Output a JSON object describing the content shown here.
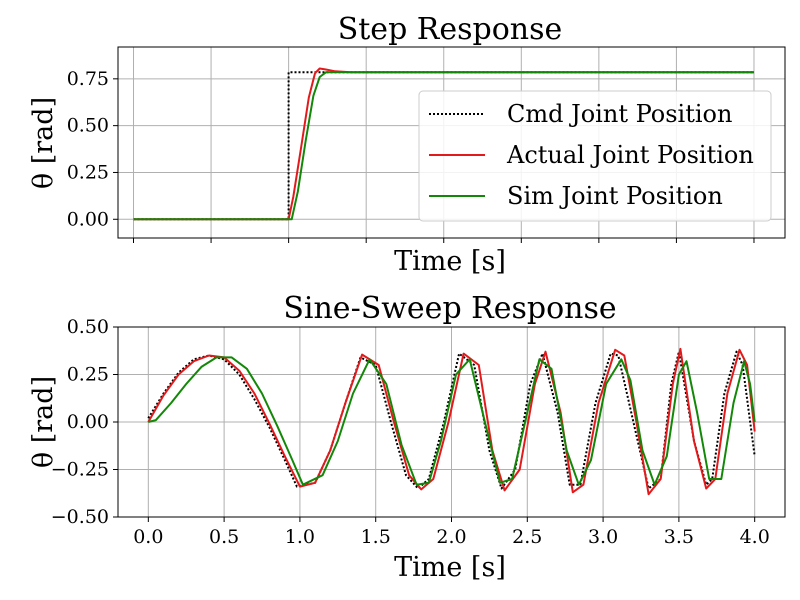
{
  "chart_data": [
    {
      "type": "line",
      "title": "Step Response",
      "xlabel": "Time [s]",
      "ylabel": "θ [rad]",
      "xlim": [
        -0.1,
        4.2
      ],
      "ylim": [
        -0.1,
        0.92
      ],
      "xticks": [
        0.0,
        0.5,
        1.0,
        1.5,
        2.0,
        2.5,
        3.0,
        3.5,
        4.0
      ],
      "show_xtick_labels": false,
      "yticks": [
        0.0,
        0.25,
        0.5,
        0.75
      ],
      "ytick_labels": [
        "0.00",
        "0.25",
        "0.50",
        "0.75"
      ],
      "grid": true,
      "legend": "right",
      "series": [
        {
          "name": "Cmd Joint Position",
          "color": "#000000",
          "style": "dotted",
          "x": [
            0.0,
            1.0,
            1.0,
            1.15,
            4.0
          ],
          "y": [
            0.0,
            0.0,
            0.785,
            0.785,
            0.785
          ]
        },
        {
          "name": "Actual Joint Position",
          "color": "#e31a1c",
          "style": "solid",
          "x": [
            0.0,
            1.0,
            1.03,
            1.08,
            1.13,
            1.17,
            1.2,
            1.24,
            1.3,
            1.4,
            4.0
          ],
          "y": [
            0.0,
            0.0,
            0.12,
            0.38,
            0.65,
            0.78,
            0.805,
            0.8,
            0.79,
            0.785,
            0.785
          ]
        },
        {
          "name": "Sim Joint Position",
          "color": "#138808",
          "style": "solid",
          "x": [
            0.0,
            1.02,
            1.06,
            1.11,
            1.16,
            1.2,
            1.24,
            1.3,
            4.0
          ],
          "y": [
            0.0,
            0.0,
            0.15,
            0.42,
            0.66,
            0.76,
            0.785,
            0.785,
            0.785
          ]
        }
      ]
    },
    {
      "type": "line",
      "title": "Sine-Sweep Response",
      "xlabel": "Time [s]",
      "ylabel": "θ [rad]",
      "xlim": [
        -0.2,
        4.2
      ],
      "ylim": [
        -0.5,
        0.5
      ],
      "xticks": [
        0.0,
        0.5,
        1.0,
        1.5,
        2.0,
        2.5,
        3.0,
        3.5,
        4.0
      ],
      "xtick_labels": [
        "0.0",
        "0.5",
        "1.0",
        "1.5",
        "2.0",
        "2.5",
        "3.0",
        "3.5",
        "4.0"
      ],
      "yticks": [
        -0.5,
        -0.25,
        0.0,
        0.25,
        0.5
      ],
      "ytick_labels": [
        "−0.50",
        "−0.25",
        "0.00",
        "0.25",
        "0.50"
      ],
      "grid": true,
      "series": [
        {
          "name": "Cmd Joint Position",
          "color": "#000000",
          "style": "dotted",
          "x": [
            0.0,
            0.1,
            0.2,
            0.3,
            0.4,
            0.5,
            0.6,
            0.7,
            0.8,
            0.9,
            0.98,
            1.1,
            1.2,
            1.3,
            1.4,
            1.5,
            1.6,
            1.7,
            1.78,
            1.85,
            1.95,
            2.05,
            2.15,
            2.25,
            2.33,
            2.42,
            2.52,
            2.6,
            2.7,
            2.78,
            2.85,
            2.95,
            3.05,
            3.1,
            3.2,
            3.3,
            3.38,
            3.45,
            3.5,
            3.6,
            3.68,
            3.72,
            3.8,
            3.88,
            3.92,
            4.0
          ],
          "y": [
            0.02,
            0.15,
            0.26,
            0.33,
            0.35,
            0.33,
            0.25,
            0.12,
            -0.03,
            -0.2,
            -0.34,
            -0.32,
            -0.15,
            0.1,
            0.34,
            0.3,
            0.0,
            -0.28,
            -0.35,
            -0.3,
            0.0,
            0.36,
            0.3,
            -0.15,
            -0.35,
            -0.25,
            0.2,
            0.36,
            0.05,
            -0.33,
            -0.33,
            0.1,
            0.36,
            0.35,
            0.0,
            -0.35,
            -0.3,
            0.2,
            0.37,
            -0.1,
            -0.33,
            -0.3,
            0.15,
            0.37,
            0.3,
            -0.18
          ]
        },
        {
          "name": "Actual Joint Position",
          "color": "#e31a1c",
          "style": "solid",
          "x": [
            0.0,
            0.1,
            0.2,
            0.3,
            0.4,
            0.5,
            0.6,
            0.7,
            0.8,
            0.9,
            1.0,
            1.1,
            1.2,
            1.3,
            1.41,
            1.52,
            1.62,
            1.72,
            1.8,
            1.88,
            1.98,
            2.08,
            2.18,
            2.27,
            2.35,
            2.45,
            2.55,
            2.62,
            2.72,
            2.8,
            2.87,
            2.97,
            3.08,
            3.14,
            3.22,
            3.3,
            3.38,
            3.46,
            3.51,
            3.6,
            3.68,
            3.74,
            3.82,
            3.9,
            3.95,
            4.0
          ],
          "y": [
            0.0,
            0.14,
            0.25,
            0.32,
            0.35,
            0.34,
            0.27,
            0.15,
            -0.01,
            -0.18,
            -0.34,
            -0.32,
            -0.15,
            0.1,
            0.355,
            0.3,
            0.0,
            -0.28,
            -0.355,
            -0.3,
            0.0,
            0.36,
            0.3,
            -0.15,
            -0.36,
            -0.25,
            0.2,
            0.37,
            0.05,
            -0.37,
            -0.33,
            0.1,
            0.38,
            0.35,
            0.0,
            -0.38,
            -0.3,
            0.2,
            0.385,
            -0.1,
            -0.35,
            -0.3,
            0.15,
            0.38,
            0.3,
            -0.05
          ]
        },
        {
          "name": "Sim Joint Position",
          "color": "#138808",
          "style": "solid",
          "x": [
            0.0,
            0.05,
            0.15,
            0.25,
            0.35,
            0.45,
            0.55,
            0.65,
            0.75,
            0.85,
            0.95,
            1.02,
            1.15,
            1.25,
            1.35,
            1.46,
            1.57,
            1.67,
            1.77,
            1.85,
            1.93,
            2.03,
            2.12,
            2.22,
            2.32,
            2.4,
            2.5,
            2.58,
            2.66,
            2.76,
            2.84,
            2.92,
            3.02,
            3.12,
            3.18,
            3.26,
            3.34,
            3.42,
            3.5,
            3.55,
            3.62,
            3.7,
            3.78,
            3.86,
            3.93,
            3.97,
            4.0
          ],
          "y": [
            0.0,
            0.01,
            0.1,
            0.2,
            0.29,
            0.34,
            0.34,
            0.28,
            0.15,
            -0.02,
            -0.2,
            -0.33,
            -0.28,
            -0.1,
            0.15,
            0.33,
            0.2,
            -0.12,
            -0.33,
            -0.32,
            -0.1,
            0.25,
            0.33,
            0.0,
            -0.32,
            -0.3,
            0.05,
            0.33,
            0.28,
            -0.15,
            -0.33,
            -0.2,
            0.2,
            0.33,
            0.22,
            -0.15,
            -0.33,
            -0.18,
            0.25,
            0.32,
            0.05,
            -0.3,
            -0.3,
            0.1,
            0.32,
            0.2,
            0.0
          ]
        }
      ]
    }
  ]
}
